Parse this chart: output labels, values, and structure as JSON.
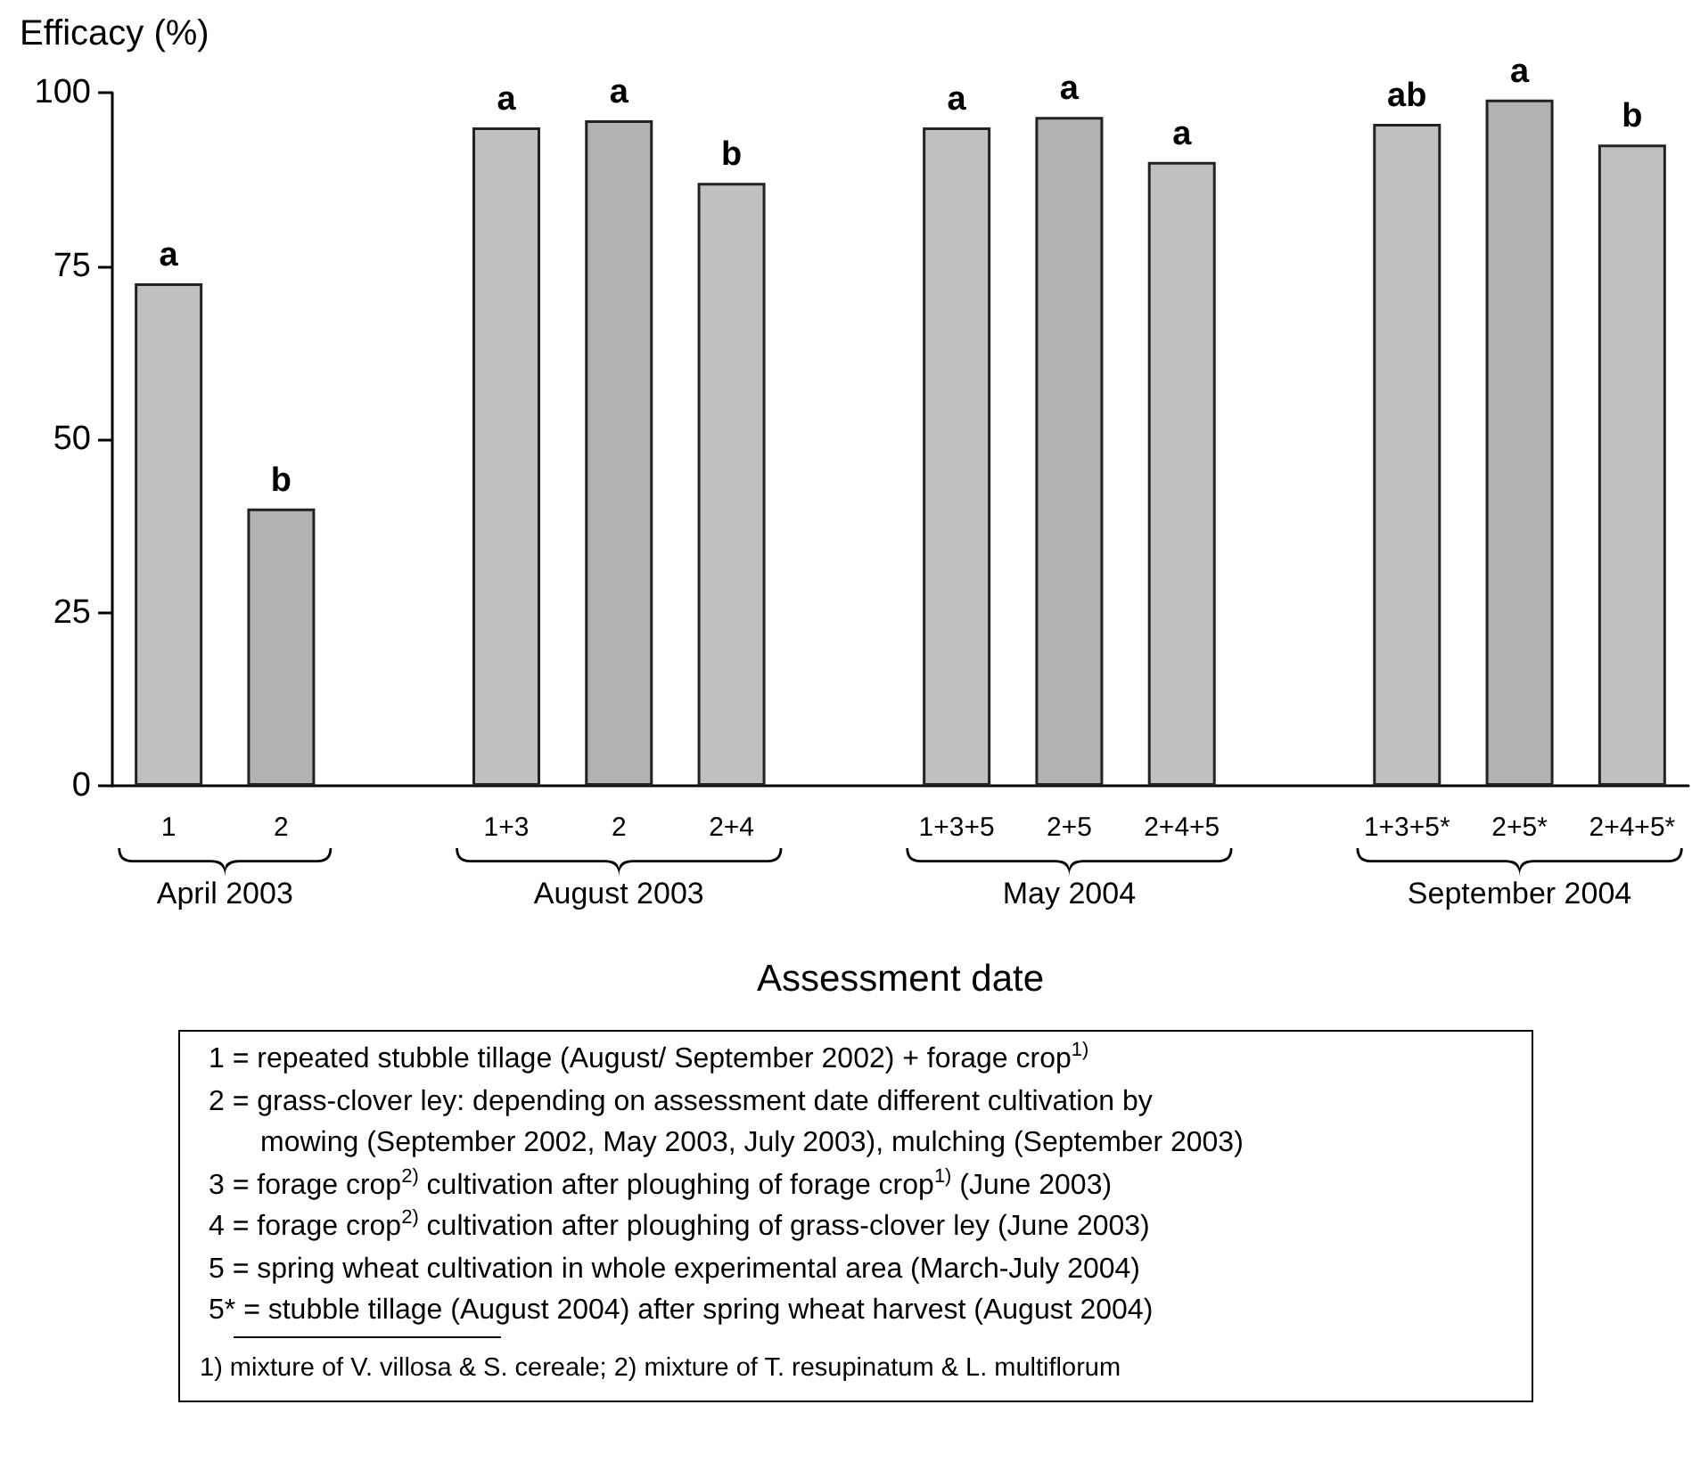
{
  "chart_data": {
    "type": "bar",
    "ylabel": "Efficacy (%)",
    "xlabel": "Assessment date",
    "categories": [
      "1",
      "2",
      null,
      "1+3",
      "2",
      "2+4",
      null,
      "1+3+5",
      "2+5",
      "2+4+5",
      null,
      "1+3+5*",
      "2+5*",
      "2+4+5*"
    ],
    "values": [
      72.5,
      40,
      null,
      95,
      96,
      87,
      null,
      95,
      96.5,
      90,
      null,
      95.5,
      99,
      92.5
    ],
    "colors": [
      "#c0c0c0",
      "#b2b2b2",
      null,
      "#c0c0c0",
      "#b2b2b2",
      "#c0c0c0",
      null,
      "#c0c0c0",
      "#b2b2b2",
      "#c0c0c0",
      null,
      "#c0c0c0",
      "#b2b2b2",
      "#c0c0c0"
    ],
    "value_labels": [
      "a",
      "b",
      null,
      "a",
      "a",
      "b",
      null,
      "a",
      "a",
      "a",
      null,
      "ab",
      "a",
      "b"
    ],
    "ylim": [
      0,
      100
    ],
    "yticks": [
      0,
      25,
      50,
      75,
      100
    ],
    "grid": false,
    "annotations": [
      "April 2003",
      "August 2003",
      "May 2004",
      "September 2004",
      "1 = repeated stubble tillage (August/ September 2002) + forage crop$^{1)}$",
      "2 = grass-clover ley: depending on  assessment date different cultivation by",
      "mowing (September 2002, May 2003, July 2003), mulching (September 2003)",
      "3 = forage crop$^{2)}$ cultivation after ploughing of forage crop$^{1)}$ (June 2003)",
      "4 = forage crop$^{2)}$ cultivation after ploughing of grass-clover ley (June 2003)",
      "5 = spring wheat cultivation in whole experimental area (March-July 2004)",
      "5* = stubble tillage (August 2004) after spring wheat harvest (August 2004)",
      "1) mixture of V. villosa & S. cereale;   2) mixture of T. resupinatum & L. multiflorum"
    ]
  }
}
